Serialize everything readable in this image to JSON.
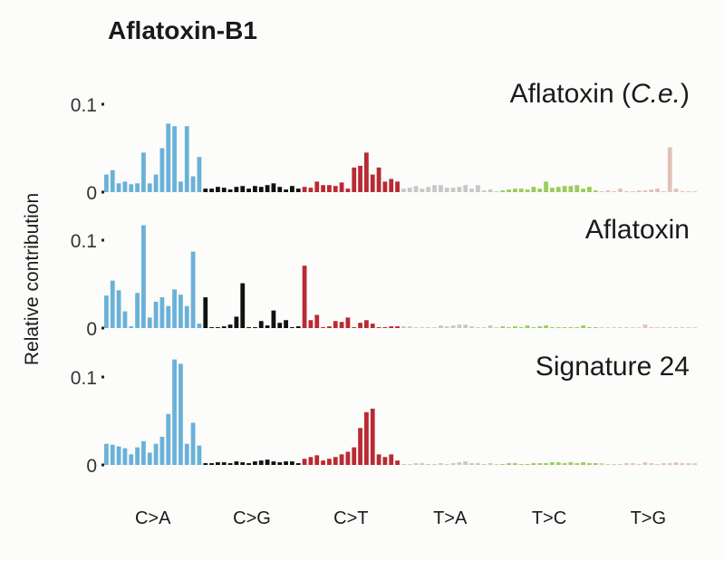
{
  "chart_data": {
    "type": "bar",
    "title": "Aflatoxin-B1",
    "ylabel": "Relative contribution",
    "ylim": [
      0,
      0.12
    ],
    "yticks": [
      {
        "value": 0,
        "label": "0"
      },
      {
        "value": 0.1,
        "label": "0.1"
      }
    ],
    "groups": [
      "C>A",
      "C>G",
      "C>T",
      "T>A",
      "T>C",
      "T>G"
    ],
    "colors": [
      "#6ab1d8",
      "#111111",
      "#b82b33",
      "#c8c8c8",
      "#9ccb5e",
      "#e2c2b8"
    ],
    "panels": [
      {
        "label_prefix": "Aflatoxin (",
        "label_italic": "C.e.",
        "label_suffix": ")",
        "values": [
          0.02,
          0.025,
          0.01,
          0.012,
          0.009,
          0.01,
          0.045,
          0.01,
          0.02,
          0.05,
          0.078,
          0.075,
          0.012,
          0.075,
          0.018,
          0.04,
          0.004,
          0.004,
          0.006,
          0.005,
          0.003,
          0.006,
          0.007,
          0.004,
          0.007,
          0.006,
          0.008,
          0.01,
          0.006,
          0.003,
          0.007,
          0.004,
          0.006,
          0.005,
          0.012,
          0.008,
          0.008,
          0.007,
          0.011,
          0.004,
          0.028,
          0.03,
          0.045,
          0.02,
          0.028,
          0.012,
          0.015,
          0.012,
          0.004,
          0.005,
          0.007,
          0.004,
          0.006,
          0.008,
          0.008,
          0.005,
          0.005,
          0.006,
          0.008,
          0.004,
          0.008,
          0.002,
          0.003,
          0.001,
          0.002,
          0.003,
          0.004,
          0.004,
          0.003,
          0.006,
          0.004,
          0.012,
          0.005,
          0.006,
          0.007,
          0.007,
          0.008,
          0.004,
          0.006,
          0.002,
          0.001,
          0.002,
          0.001,
          0.004,
          0.001,
          0.001,
          0.002,
          0.002,
          0.003,
          0.004,
          0.001,
          0.051,
          0.004,
          0.001,
          0.001,
          0.001
        ]
      },
      {
        "label_prefix": "Aflatoxin",
        "label_italic": "",
        "label_suffix": "",
        "values": [
          0.037,
          0.054,
          0.043,
          0.019,
          0.002,
          0.04,
          0.117,
          0.012,
          0.03,
          0.035,
          0.025,
          0.044,
          0.038,
          0.025,
          0.087,
          0.005,
          0.035,
          0.001,
          0.001,
          0.002,
          0.004,
          0.013,
          0.051,
          0.001,
          0.001,
          0.008,
          0.003,
          0.02,
          0.006,
          0.009,
          0.001,
          0.002,
          0.071,
          0.009,
          0.015,
          0.001,
          0.002,
          0.008,
          0.007,
          0.012,
          0.001,
          0.006,
          0.009,
          0.005,
          0.001,
          0.001,
          0.002,
          0.002,
          0.002,
          0.002,
          0.001,
          0.001,
          0.001,
          0.001,
          0.003,
          0.002,
          0.003,
          0.004,
          0.004,
          0.002,
          0.001,
          0.001,
          0.003,
          0.001,
          0.002,
          0.001,
          0.002,
          0.001,
          0.003,
          0.001,
          0.002,
          0.003,
          0.001,
          0.001,
          0.001,
          0.001,
          0.001,
          0.003,
          0.001,
          0.001,
          0.001,
          0.001,
          0.001,
          0.001,
          0.001,
          0.001,
          0.001,
          0.004,
          0.001,
          0.001,
          0.001,
          0.001,
          0.001,
          0.001,
          0.001,
          0.001
        ]
      },
      {
        "label_prefix": "Signature 24",
        "label_italic": "",
        "label_suffix": "",
        "values": [
          0.024,
          0.023,
          0.021,
          0.019,
          0.012,
          0.02,
          0.027,
          0.014,
          0.024,
          0.032,
          0.058,
          0.12,
          0.115,
          0.024,
          0.048,
          0.022,
          0.002,
          0.002,
          0.003,
          0.003,
          0.002,
          0.004,
          0.003,
          0.002,
          0.004,
          0.005,
          0.006,
          0.004,
          0.003,
          0.004,
          0.004,
          0.002,
          0.007,
          0.009,
          0.011,
          0.005,
          0.007,
          0.009,
          0.012,
          0.015,
          0.02,
          0.042,
          0.06,
          0.064,
          0.012,
          0.009,
          0.012,
          0.005,
          0.001,
          0.001,
          0.002,
          0.002,
          0.001,
          0.001,
          0.002,
          0.001,
          0.002,
          0.003,
          0.004,
          0.002,
          0.002,
          0.001,
          0.002,
          0.001,
          0.001,
          0.002,
          0.002,
          0.001,
          0.001,
          0.002,
          0.002,
          0.002,
          0.003,
          0.003,
          0.002,
          0.003,
          0.002,
          0.003,
          0.002,
          0.002,
          0.002,
          0.001,
          0.001,
          0.001,
          0.002,
          0.002,
          0.001,
          0.003,
          0.002,
          0.001,
          0.002,
          0.002,
          0.003,
          0.002,
          0.002,
          0.002
        ]
      }
    ]
  }
}
